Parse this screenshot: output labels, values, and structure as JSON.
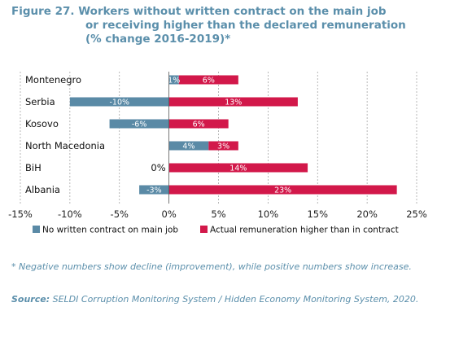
{
  "figure": {
    "number": "Figure 27.",
    "title_lines": [
      "Workers without written contract on the main job",
      "or receiving higher than the declared remuneration",
      "(% change 2016-2019)*"
    ]
  },
  "chart_data": {
    "type": "bar",
    "orientation": "horizontal",
    "stacking": "diverging",
    "categories": [
      "Montenegro",
      "Serbia",
      "Kosovo",
      "North Macedonia",
      "BiH",
      "Albania"
    ],
    "series": [
      {
        "name": "No written contract on main job",
        "color": "#5a8aa6",
        "values": [
          1,
          -10,
          -6,
          4,
          0,
          -3
        ],
        "labels": [
          "1%",
          "-10%",
          "-6%",
          "4%",
          "0%",
          "-3%"
        ]
      },
      {
        "name": "Actual remuneration higher than in contract",
        "color": "#d2184a",
        "values": [
          6,
          13,
          6,
          3,
          14,
          23
        ],
        "labels": [
          "6%",
          "13%",
          "6%",
          "3%",
          "14%",
          "23%"
        ]
      }
    ],
    "xlim": [
      -15,
      25
    ],
    "xticks": [
      -15,
      -10,
      -5,
      0,
      5,
      10,
      15,
      20,
      25
    ],
    "xtick_labels": [
      "-15%",
      "-10%",
      "-5%",
      "0%",
      "5%",
      "10%",
      "15%",
      "20%",
      "25%"
    ],
    "grid": "vertical dashed",
    "legend_position": "bottom"
  },
  "footnote": "* Negative numbers show decline (improvement), while positive numbers show increase.",
  "source": {
    "label": "Source:",
    "text": " SELDI Corruption Monitoring System / Hidden Economy Monitoring System, 2020."
  },
  "colors": {
    "title": "#5b8fab",
    "series_blue": "#5a8aa6",
    "series_red": "#d2184a"
  }
}
